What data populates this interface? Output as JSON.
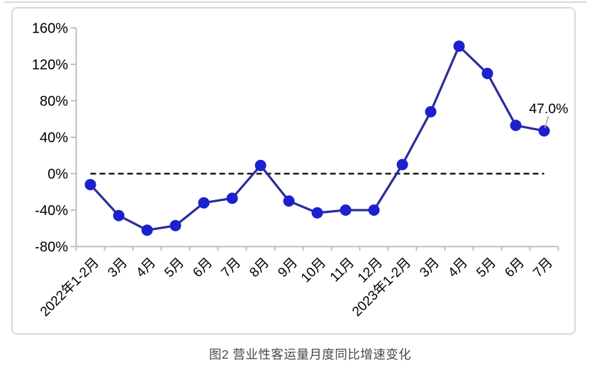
{
  "page": {
    "caption": "图2  营业性客运量月度同比增速变化"
  },
  "chart_data": {
    "type": "line",
    "title": "",
    "xlabel": "",
    "ylabel": "",
    "categories": [
      "2022年1-2月",
      "3月",
      "4月",
      "5月",
      "6月",
      "7月",
      "8月",
      "9月",
      "10月",
      "11月",
      "12月",
      "2023年1-2月",
      "3月",
      "4月",
      "5月",
      "6月",
      "7月"
    ],
    "series": [
      {
        "name": "营业性客运量月度同比增速",
        "values": [
          -12,
          -46,
          -62,
          -57,
          -32,
          -27,
          9,
          -30,
          -43,
          -40,
          -40,
          10,
          68,
          140,
          110,
          53,
          47
        ]
      }
    ],
    "ylim": [
      -80,
      160
    ],
    "yticks": {
      "values": [
        160,
        120,
        80,
        40,
        0,
        -40,
        -80
      ],
      "labels": [
        "160%",
        "120%",
        "80%",
        "40%",
        "0%",
        "-40%",
        "-80%"
      ]
    },
    "grid": false,
    "legend": "none",
    "zero_line": {
      "value": 0,
      "style": "dashed"
    },
    "annotation": {
      "text": "47.0%",
      "target_category": "2023年7月",
      "target_value": 47
    },
    "colors": {
      "line": "#2a2d99",
      "marker": "#1c20cf",
      "axis": "#bfbfbf",
      "zero_line": "#000000",
      "tick_text": "#000000",
      "annotation_text": "#000000",
      "leader": "#a6a6a6",
      "frame": "#d9d9d9",
      "caption": "#474747"
    }
  }
}
